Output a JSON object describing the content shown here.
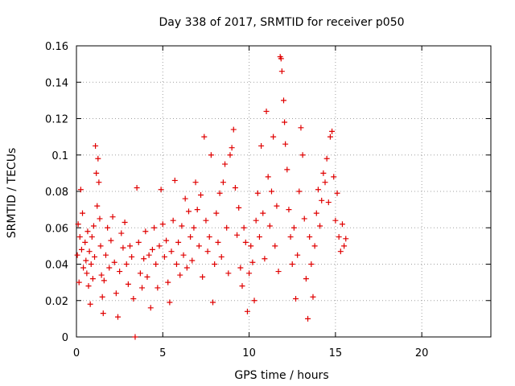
{
  "chart_data": {
    "type": "scatter",
    "title": "Day 338 of 2017, SRMTID for receiver p050",
    "xlabel": "GPS time / hours",
    "ylabel": "SRMTID / TECUs",
    "xlim": [
      0,
      24
    ],
    "ylim": [
      0,
      0.16
    ],
    "xticks": [
      0,
      5,
      10,
      15,
      20
    ],
    "xtick_labels": [
      "0",
      "5",
      "10",
      "15",
      "20"
    ],
    "yticks": [
      0,
      0.02,
      0.04,
      0.06,
      0.08,
      0.1,
      0.12,
      0.14,
      0.16
    ],
    "ytick_labels": [
      "0",
      "0.02",
      "0.04",
      "0.06",
      "0.08",
      "0.1",
      "0.12",
      "0.14",
      "0.16"
    ],
    "grid": true,
    "marker": "+",
    "color": "#e00000",
    "series": [
      {
        "name": "SRMTID",
        "points": [
          [
            0.05,
            0.045
          ],
          [
            0.1,
            0.062
          ],
          [
            0.15,
            0.03
          ],
          [
            0.2,
            0.055
          ],
          [
            0.25,
            0.081
          ],
          [
            0.3,
            0.048
          ],
          [
            0.35,
            0.068
          ],
          [
            0.4,
            0.038
          ],
          [
            0.5,
            0.052
          ],
          [
            0.55,
            0.042
          ],
          [
            0.6,
            0.035
          ],
          [
            0.65,
            0.058
          ],
          [
            0.7,
            0.028
          ],
          [
            0.75,
            0.047
          ],
          [
            0.8,
            0.018
          ],
          [
            0.85,
            0.04
          ],
          [
            0.9,
            0.055
          ],
          [
            0.95,
            0.032
          ],
          [
            1.0,
            0.061
          ],
          [
            1.05,
            0.044
          ],
          [
            1.1,
            0.105
          ],
          [
            1.15,
            0.09
          ],
          [
            1.2,
            0.072
          ],
          [
            1.25,
            0.098
          ],
          [
            1.3,
            0.085
          ],
          [
            1.35,
            0.065
          ],
          [
            1.4,
            0.05
          ],
          [
            1.45,
            0.034
          ],
          [
            1.5,
            0.022
          ],
          [
            1.55,
            0.013
          ],
          [
            1.6,
            0.031
          ],
          [
            1.7,
            0.045
          ],
          [
            1.8,
            0.06
          ],
          [
            1.9,
            0.038
          ],
          [
            2.0,
            0.053
          ],
          [
            2.1,
            0.066
          ],
          [
            2.2,
            0.041
          ],
          [
            2.3,
            0.024
          ],
          [
            2.4,
            0.011
          ],
          [
            2.5,
            0.036
          ],
          [
            2.6,
            0.057
          ],
          [
            2.7,
            0.049
          ],
          [
            2.8,
            0.063
          ],
          [
            2.9,
            0.04
          ],
          [
            3.0,
            0.029
          ],
          [
            3.1,
            0.05
          ],
          [
            3.2,
            0.044
          ],
          [
            3.3,
            0.021
          ],
          [
            3.4,
            0.0
          ],
          [
            3.5,
            0.082
          ],
          [
            3.6,
            0.052
          ],
          [
            3.7,
            0.035
          ],
          [
            3.8,
            0.027
          ],
          [
            3.9,
            0.043
          ],
          [
            4.0,
            0.058
          ],
          [
            4.1,
            0.033
          ],
          [
            4.2,
            0.045
          ],
          [
            4.3,
            0.016
          ],
          [
            4.4,
            0.048
          ],
          [
            4.5,
            0.06
          ],
          [
            4.6,
            0.04
          ],
          [
            4.7,
            0.027
          ],
          [
            4.8,
            0.05
          ],
          [
            4.9,
            0.081
          ],
          [
            5.0,
            0.062
          ],
          [
            5.1,
            0.044
          ],
          [
            5.2,
            0.053
          ],
          [
            5.3,
            0.03
          ],
          [
            5.4,
            0.019
          ],
          [
            5.5,
            0.047
          ],
          [
            5.6,
            0.064
          ],
          [
            5.7,
            0.086
          ],
          [
            5.8,
            0.04
          ],
          [
            5.9,
            0.052
          ],
          [
            6.0,
            0.034
          ],
          [
            6.1,
            0.061
          ],
          [
            6.2,
            0.045
          ],
          [
            6.3,
            0.076
          ],
          [
            6.4,
            0.038
          ],
          [
            6.5,
            0.069
          ],
          [
            6.6,
            0.055
          ],
          [
            6.7,
            0.042
          ],
          [
            6.8,
            0.06
          ],
          [
            6.9,
            0.085
          ],
          [
            7.0,
            0.07
          ],
          [
            7.1,
            0.05
          ],
          [
            7.2,
            0.078
          ],
          [
            7.3,
            0.033
          ],
          [
            7.4,
            0.11
          ],
          [
            7.5,
            0.064
          ],
          [
            7.6,
            0.047
          ],
          [
            7.7,
            0.055
          ],
          [
            7.8,
            0.1
          ],
          [
            7.9,
            0.019
          ],
          [
            8.0,
            0.04
          ],
          [
            8.1,
            0.068
          ],
          [
            8.2,
            0.052
          ],
          [
            8.3,
            0.079
          ],
          [
            8.4,
            0.044
          ],
          [
            8.5,
            0.085
          ],
          [
            8.6,
            0.095
          ],
          [
            8.7,
            0.06
          ],
          [
            8.8,
            0.035
          ],
          [
            8.9,
            0.1
          ],
          [
            9.0,
            0.104
          ],
          [
            9.1,
            0.114
          ],
          [
            9.2,
            0.082
          ],
          [
            9.3,
            0.056
          ],
          [
            9.4,
            0.071
          ],
          [
            9.5,
            0.038
          ],
          [
            9.6,
            0.028
          ],
          [
            9.7,
            0.06
          ],
          [
            9.8,
            0.052
          ],
          [
            9.9,
            0.014
          ],
          [
            10.0,
            0.035
          ],
          [
            10.1,
            0.05
          ],
          [
            10.2,
            0.041
          ],
          [
            10.3,
            0.02
          ],
          [
            10.4,
            0.064
          ],
          [
            10.5,
            0.079
          ],
          [
            10.6,
            0.055
          ],
          [
            10.7,
            0.105
          ],
          [
            10.8,
            0.068
          ],
          [
            10.9,
            0.043
          ],
          [
            11.0,
            0.124
          ],
          [
            11.1,
            0.088
          ],
          [
            11.2,
            0.061
          ],
          [
            11.3,
            0.08
          ],
          [
            11.4,
            0.11
          ],
          [
            11.5,
            0.05
          ],
          [
            11.6,
            0.072
          ],
          [
            11.7,
            0.036
          ],
          [
            11.8,
            0.154
          ],
          [
            11.85,
            0.153
          ],
          [
            11.9,
            0.146
          ],
          [
            12.0,
            0.13
          ],
          [
            12.05,
            0.118
          ],
          [
            12.1,
            0.106
          ],
          [
            12.2,
            0.092
          ],
          [
            12.3,
            0.07
          ],
          [
            12.4,
            0.055
          ],
          [
            12.5,
            0.04
          ],
          [
            12.6,
            0.06
          ],
          [
            12.7,
            0.021
          ],
          [
            12.8,
            0.045
          ],
          [
            12.9,
            0.08
          ],
          [
            13.0,
            0.115
          ],
          [
            13.1,
            0.1
          ],
          [
            13.2,
            0.065
          ],
          [
            13.3,
            0.032
          ],
          [
            13.4,
            0.01
          ],
          [
            13.5,
            0.055
          ],
          [
            13.6,
            0.04
          ],
          [
            13.7,
            0.022
          ],
          [
            13.8,
            0.05
          ],
          [
            13.9,
            0.068
          ],
          [
            14.0,
            0.081
          ],
          [
            14.1,
            0.061
          ],
          [
            14.2,
            0.075
          ],
          [
            14.3,
            0.09
          ],
          [
            14.4,
            0.085
          ],
          [
            14.5,
            0.098
          ],
          [
            14.6,
            0.074
          ],
          [
            14.7,
            0.11
          ],
          [
            14.8,
            0.113
          ],
          [
            14.9,
            0.088
          ],
          [
            15.0,
            0.064
          ],
          [
            15.1,
            0.079
          ],
          [
            15.2,
            0.055
          ],
          [
            15.3,
            0.047
          ],
          [
            15.4,
            0.062
          ],
          [
            15.5,
            0.05
          ],
          [
            15.6,
            0.054
          ]
        ]
      }
    ]
  }
}
